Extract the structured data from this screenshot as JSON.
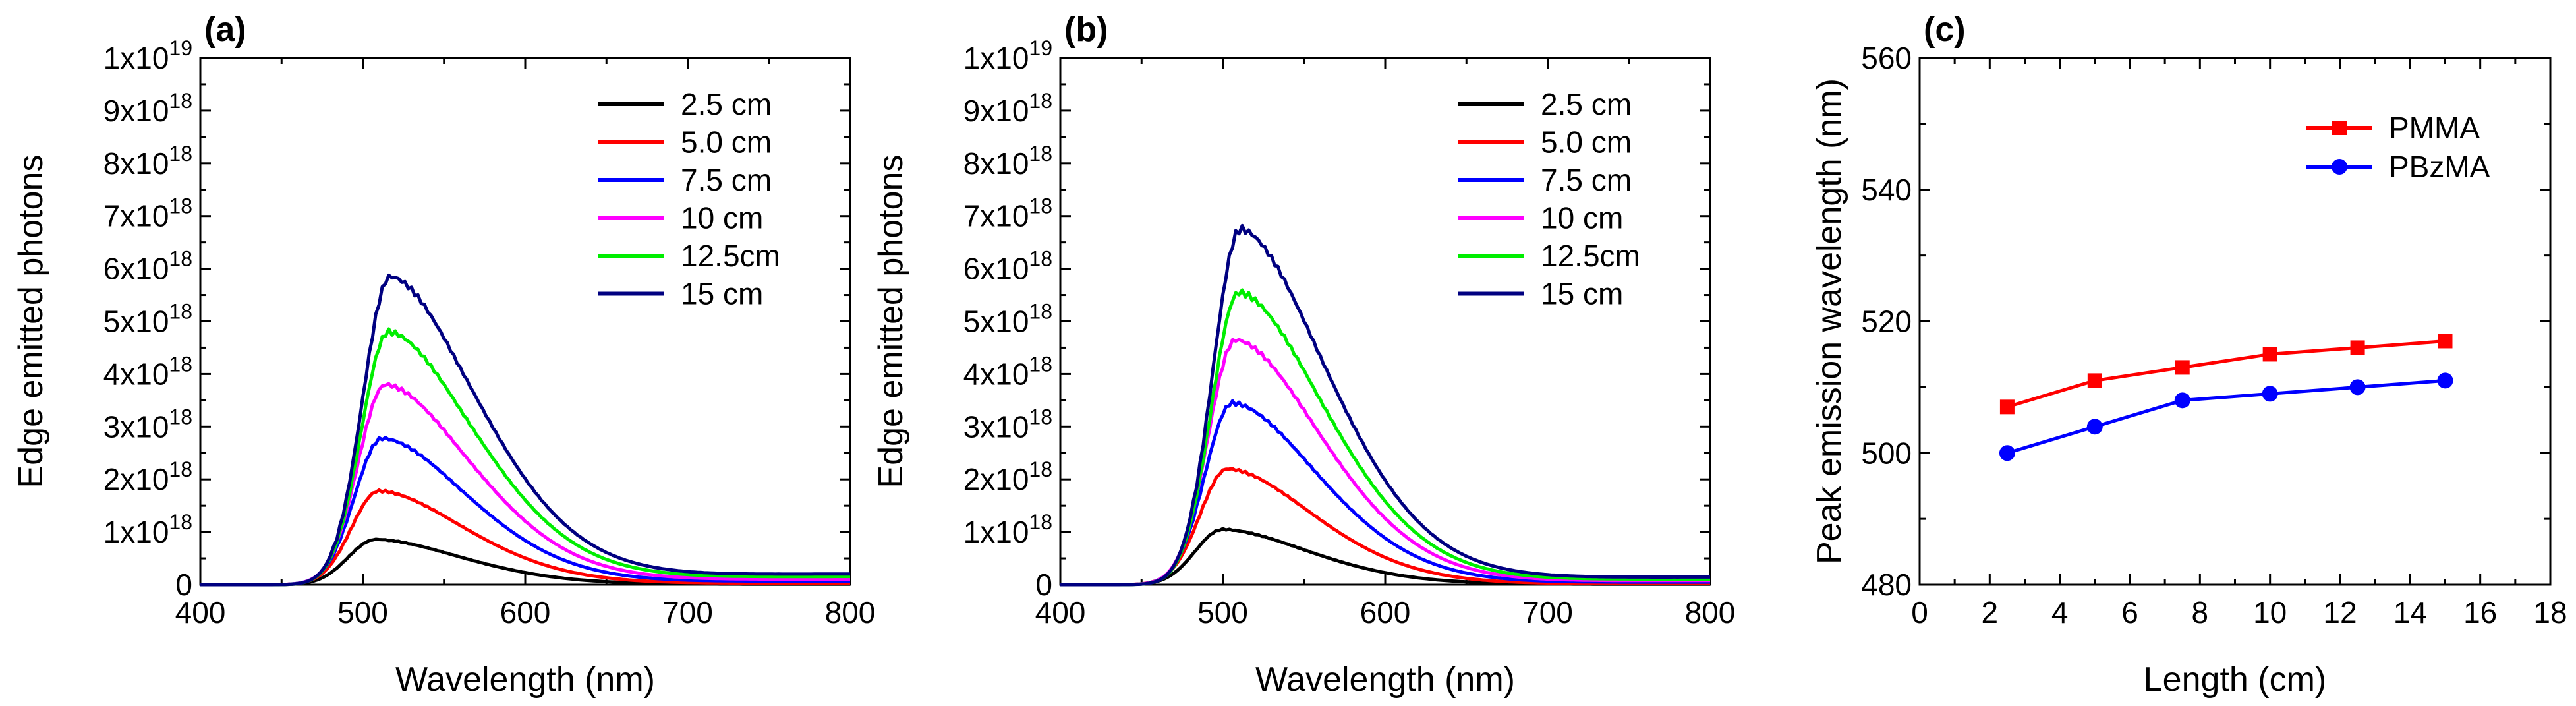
{
  "chart_data": [
    {
      "type": "line",
      "panel_label": "(a)",
      "xlabel": "Wavelength (nm)",
      "ylabel": "Edge emitted photons",
      "xlim": [
        400,
        800
      ],
      "ylim": [
        0,
        1e+19
      ],
      "xticks": [
        400,
        500,
        600,
        700,
        800
      ],
      "xtick_labels": [
        "400",
        "500",
        "600",
        "700",
        "800"
      ],
      "yticks": [
        0,
        1e+18,
        2e+18,
        3e+18,
        4e+18,
        5e+18,
        6e+18,
        7e+18,
        8e+18,
        9e+18,
        1e+19
      ],
      "ytick_labels": [
        "0",
        "1x10^18",
        "2x10^18",
        "3x10^18",
        "4x10^18",
        "5x10^18",
        "6x10^18",
        "7x10^18",
        "8x10^18",
        "9x10^18",
        "1x10^19"
      ],
      "legend_position": "top-right",
      "series": [
        {
          "name": "2.5  cm",
          "color": "#000000",
          "peak_wavelength": 508,
          "peak_value": 8.6e+17,
          "tail_value": 1e+16
        },
        {
          "name": "5.0  cm",
          "color": "#ff0000",
          "peak_wavelength": 510,
          "peak_value": 1.78e+18,
          "tail_value": 3e+16
        },
        {
          "name": "7.5  cm",
          "color": "#0000ff",
          "peak_wavelength": 512,
          "peak_value": 2.78e+18,
          "tail_value": 7e+16
        },
        {
          "name": "10   cm",
          "color": "#ff00ff",
          "peak_wavelength": 514,
          "peak_value": 3.8e+18,
          "tail_value": 1.1e+17
        },
        {
          "name": "12.5cm",
          "color": "#00ee00",
          "peak_wavelength": 516,
          "peak_value": 4.8e+18,
          "tail_value": 1.6e+17
        },
        {
          "name": "15   cm",
          "color": "#000080",
          "peak_wavelength": 517,
          "peak_value": 5.85e+18,
          "tail_value": 2.1e+17
        }
      ]
    },
    {
      "type": "line",
      "panel_label": "(b)",
      "xlabel": "Wavelength (nm)",
      "ylabel": "Edge emitted photons",
      "xlim": [
        400,
        800
      ],
      "ylim": [
        0,
        1e+19
      ],
      "xticks": [
        400,
        500,
        600,
        700,
        800
      ],
      "xtick_labels": [
        "400",
        "500",
        "600",
        "700",
        "800"
      ],
      "yticks": [
        0,
        1e+18,
        2e+18,
        3e+18,
        4e+18,
        5e+18,
        6e+18,
        7e+18,
        8e+18,
        9e+18,
        1e+19
      ],
      "ytick_labels": [
        "0",
        "1x10^18",
        "2x10^18",
        "3x10^18",
        "4x10^18",
        "5x10^18",
        "6x10^18",
        "7x10^18",
        "8x10^18",
        "9x10^18",
        "1x10^19"
      ],
      "legend_position": "top-right",
      "series": [
        {
          "name": "2.5  cm",
          "color": "#000000",
          "peak_wavelength": 500,
          "peak_value": 1.05e+18,
          "tail_value": 1e+16
        },
        {
          "name": "5.0  cm",
          "color": "#ff0000",
          "peak_wavelength": 503,
          "peak_value": 2.2e+18,
          "tail_value": 2e+16
        },
        {
          "name": "7.5  cm",
          "color": "#0000ff",
          "peak_wavelength": 506,
          "peak_value": 3.45e+18,
          "tail_value": 5e+16
        },
        {
          "name": "10   cm",
          "color": "#ff00ff",
          "peak_wavelength": 508,
          "peak_value": 4.65e+18,
          "tail_value": 8e+16
        },
        {
          "name": "12.5cm",
          "color": "#00ee00",
          "peak_wavelength": 510,
          "peak_value": 5.55e+18,
          "tail_value": 1.1e+17
        },
        {
          "name": "15   cm",
          "color": "#000080",
          "peak_wavelength": 511,
          "peak_value": 6.75e+18,
          "tail_value": 1.5e+17
        }
      ]
    },
    {
      "type": "line",
      "panel_label": "(c)",
      "xlabel": "Length (cm)",
      "ylabel": "Peak emission wavelength (nm)",
      "xlim": [
        0,
        18
      ],
      "ylim": [
        480,
        560
      ],
      "xticks": [
        0,
        2,
        4,
        6,
        8,
        10,
        12,
        14,
        16,
        18
      ],
      "xtick_labels": [
        "0",
        "2",
        "4",
        "6",
        "8",
        "10",
        "12",
        "14",
        "16",
        "18"
      ],
      "yticks": [
        480,
        500,
        520,
        540,
        560
      ],
      "ytick_labels": [
        "480",
        "500",
        "520",
        "540",
        "560"
      ],
      "legend_position": "top-right",
      "x": [
        2.5,
        5,
        7.5,
        10,
        12.5,
        15
      ],
      "series": [
        {
          "name": "PMMA",
          "color": "#ff0000",
          "marker": "square",
          "values": [
            507,
            511,
            513,
            515,
            516,
            517
          ]
        },
        {
          "name": "PBzMA",
          "color": "#0000ff",
          "marker": "circle",
          "values": [
            500,
            504,
            508,
            509,
            510,
            511
          ]
        }
      ]
    }
  ]
}
